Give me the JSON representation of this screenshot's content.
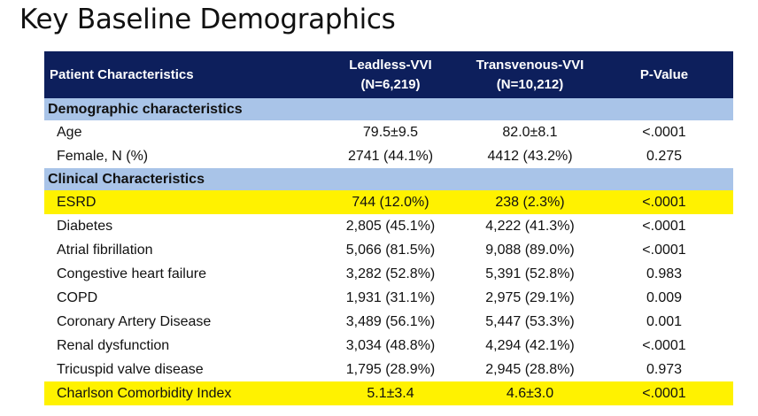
{
  "slide": {
    "title": "Key Baseline Demographics"
  },
  "table": {
    "headers": {
      "characteristics": "Patient Characteristics",
      "leadless_line1": "Leadless-VVI",
      "leadless_line2": "(N=6,219)",
      "transvenous_line1": "Transvenous-VVI",
      "transvenous_line2": "(N=10,212)",
      "pvalue": "P-Value"
    },
    "sections": [
      {
        "title": "Demographic characteristics",
        "rows": [
          {
            "label": "Age",
            "leadless": "79.5±9.5",
            "transvenous": "82.0±8.1",
            "pvalue": "<.0001",
            "highlight": false
          },
          {
            "label": "Female, N (%)",
            "leadless": "2741 (44.1%)",
            "transvenous": "4412 (43.2%)",
            "pvalue": "0.275",
            "highlight": false
          }
        ]
      },
      {
        "title": "Clinical Characteristics",
        "rows": [
          {
            "label": "ESRD",
            "leadless": "744 (12.0%)",
            "transvenous": "238 (2.3%)",
            "pvalue": "<.0001",
            "highlight": true
          },
          {
            "label": "Diabetes",
            "leadless": "2,805 (45.1%)",
            "transvenous": "4,222 (41.3%)",
            "pvalue": "<.0001",
            "highlight": false
          },
          {
            "label": "Atrial fibrillation",
            "leadless": "5,066 (81.5%)",
            "transvenous": "9,088 (89.0%)",
            "pvalue": "<.0001",
            "highlight": false
          },
          {
            "label": "Congestive heart failure",
            "leadless": "3,282 (52.8%)",
            "transvenous": "5,391 (52.8%)",
            "pvalue": "0.983",
            "highlight": false
          },
          {
            "label": "COPD",
            "leadless": "1,931 (31.1%)",
            "transvenous": "2,975 (29.1%)",
            "pvalue": "0.009",
            "highlight": false
          },
          {
            "label": "Coronary Artery Disease",
            "leadless": "3,489 (56.1%)",
            "transvenous": "5,447 (53.3%)",
            "pvalue": "0.001",
            "highlight": false
          },
          {
            "label": "Renal dysfunction",
            "leadless": "3,034 (48.8%)",
            "transvenous": "4,294 (42.1%)",
            "pvalue": "<.0001",
            "highlight": false
          },
          {
            "label": "Tricuspid valve disease",
            "leadless": "1,795 (28.9%)",
            "transvenous": "2,945 (28.8%)",
            "pvalue": "0.973",
            "highlight": false
          },
          {
            "label": "Charlson Comorbidity Index",
            "leadless": "5.1±3.4",
            "transvenous": "4.6±3.0",
            "pvalue": "<.0001",
            "highlight": true
          }
        ]
      }
    ],
    "colors": {
      "header_bg": "#0d1f5c",
      "section_bg": "#a9c4e8",
      "highlight_bg": "#fff200"
    }
  }
}
